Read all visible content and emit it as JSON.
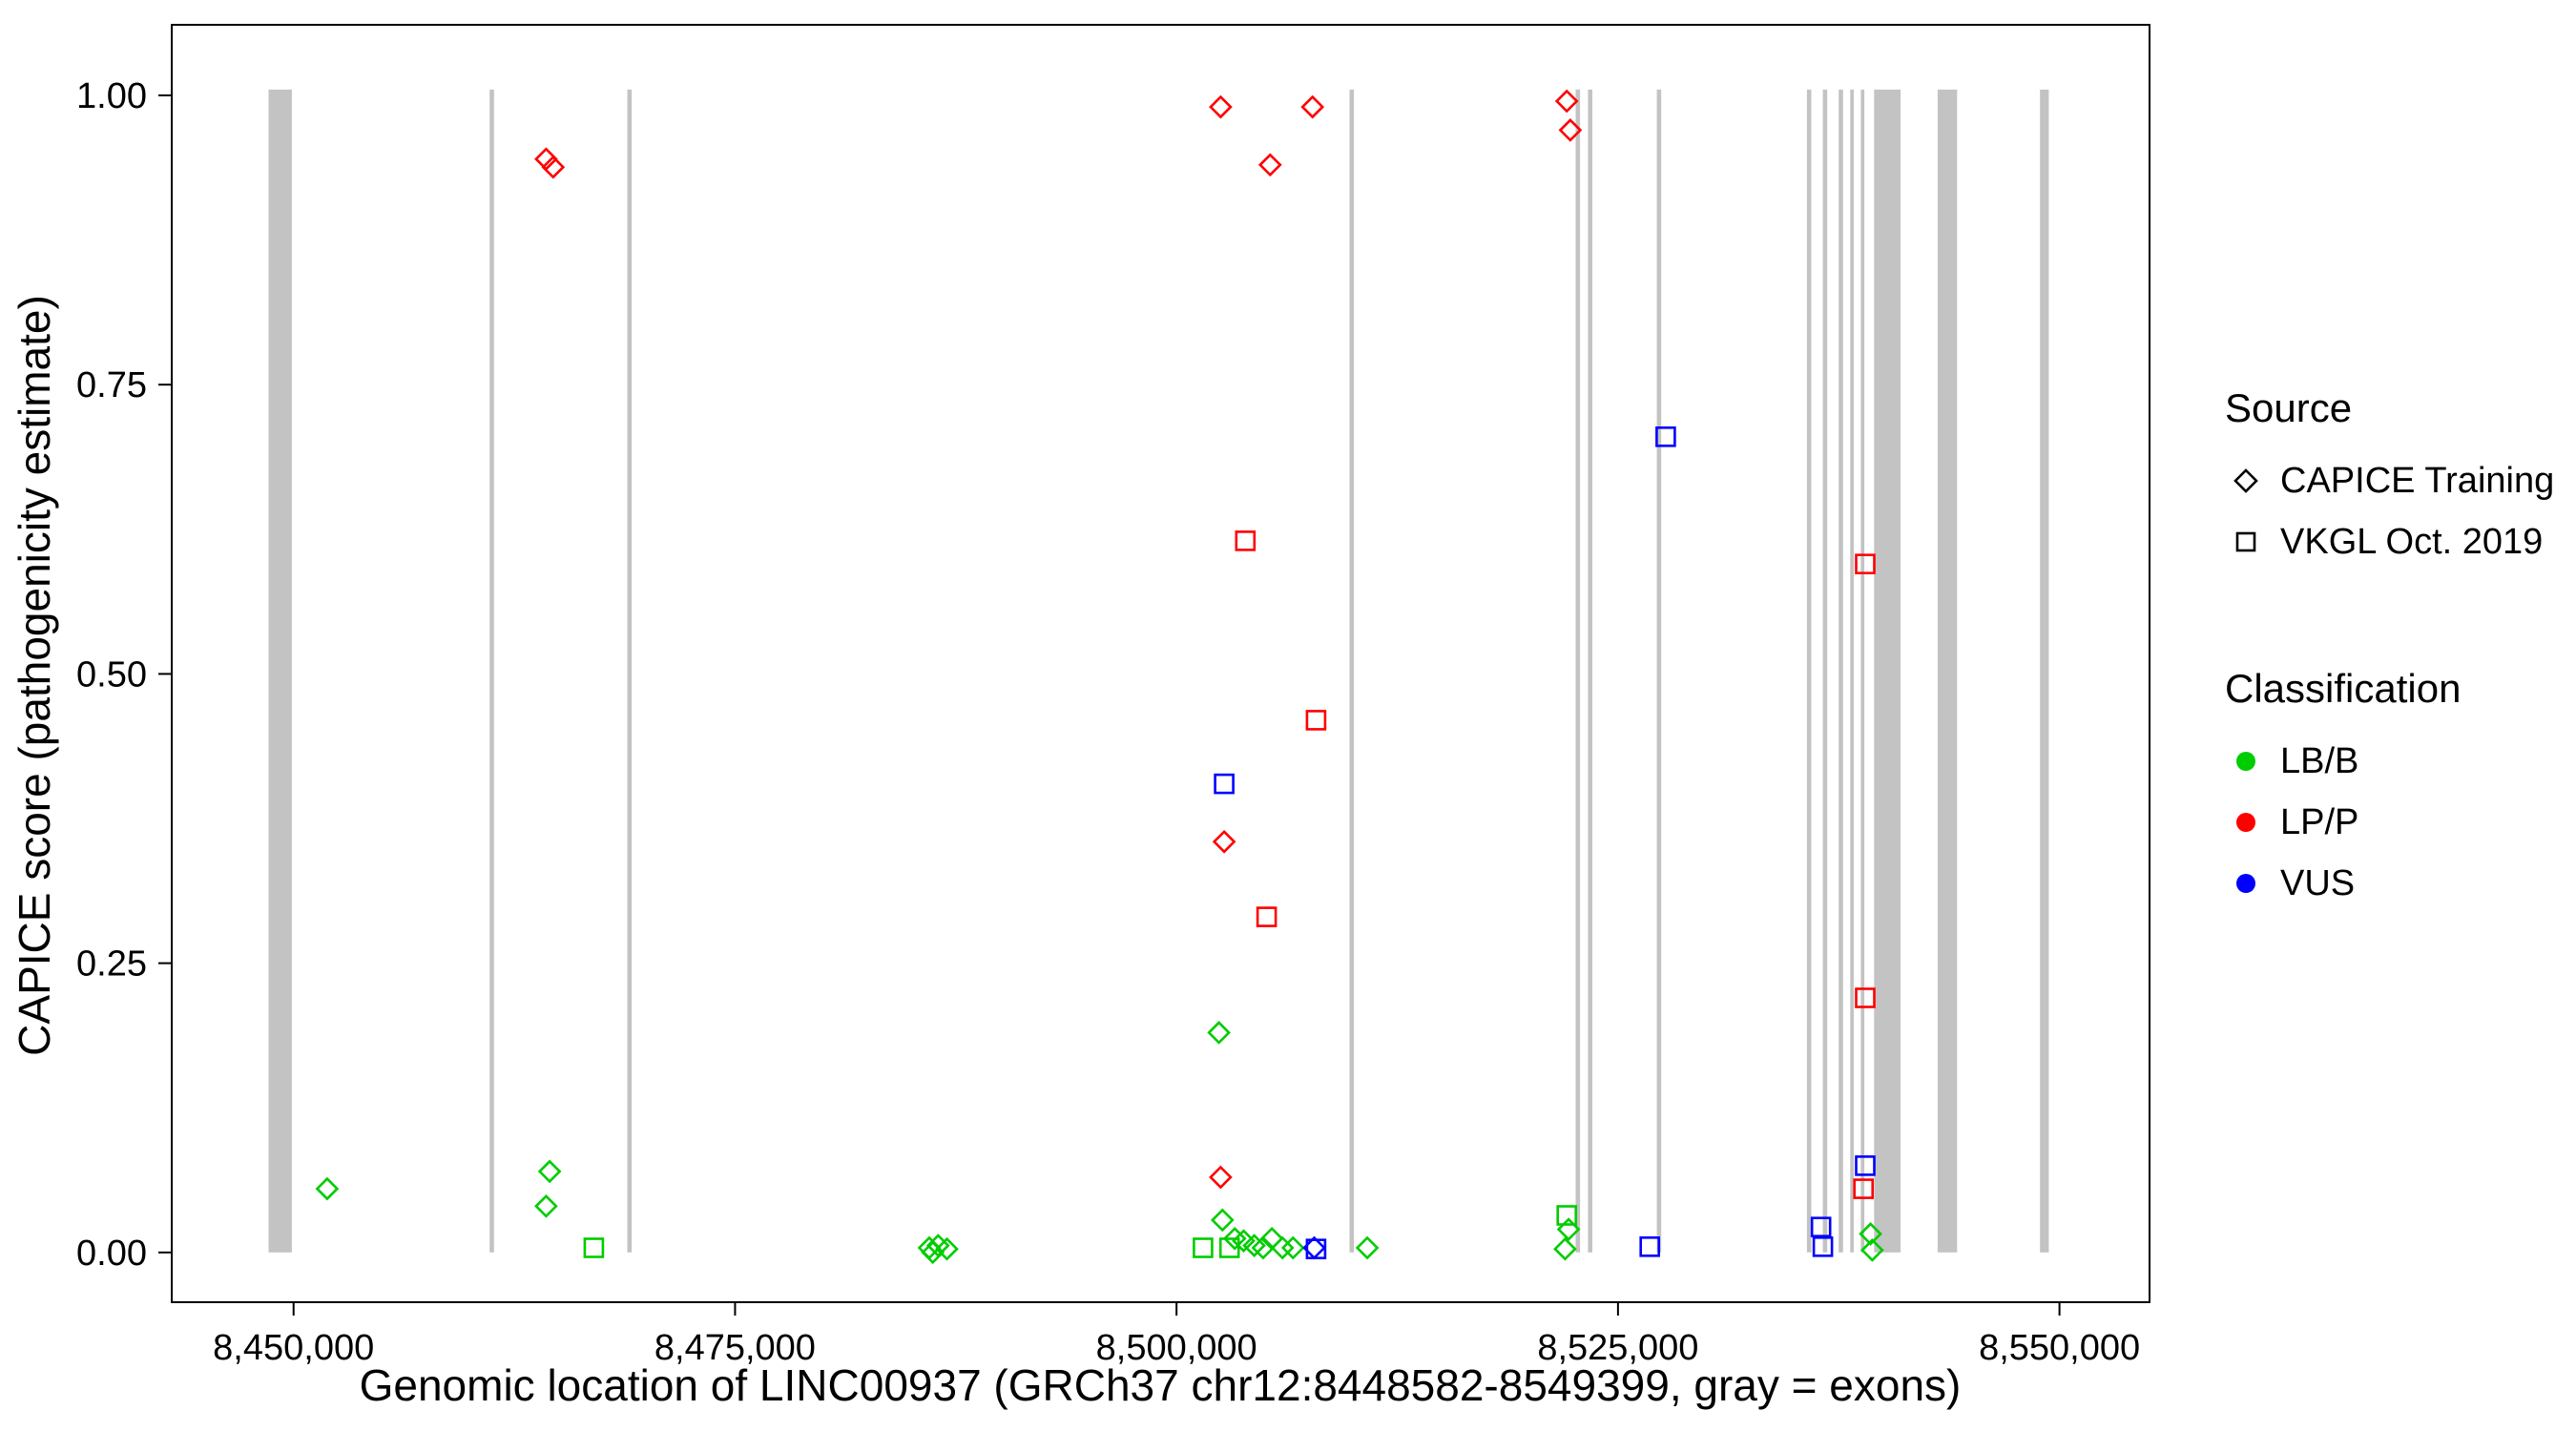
{
  "chart_data": {
    "type": "scatter",
    "title": "",
    "xlabel": "Genomic location of LINC00937 (GRCh37 chr12:8448582-8549399, gray = exons)",
    "ylabel": "CAPICE score (pathogenicity estimate)",
    "x_domain": [
      8443100,
      8555100
    ],
    "y_domain": [
      -0.043,
      1.061
    ],
    "x_ticks": [
      {
        "value": 8450000,
        "label": "8,450,000"
      },
      {
        "value": 8475000,
        "label": "8,475,000"
      },
      {
        "value": 8500000,
        "label": "8,500,000"
      },
      {
        "value": 8525000,
        "label": "8,525,000"
      },
      {
        "value": 8550000,
        "label": "8,550,000"
      }
    ],
    "y_ticks": [
      {
        "value": 0.0,
        "label": "0.00"
      },
      {
        "value": 0.25,
        "label": "0.25"
      },
      {
        "value": 0.5,
        "label": "0.50"
      },
      {
        "value": 0.75,
        "label": "0.75"
      },
      {
        "value": 1.0,
        "label": "1.00"
      }
    ],
    "colors": {
      "lbb": "#00CD00",
      "lpp": "#FF0000",
      "vus": "#0000FF",
      "exon": "#C3C3C3",
      "axis": "#000000"
    },
    "exon_band": {
      "ymin": 0.0,
      "ymax": 1.005
    },
    "exons": [
      {
        "start": 8448582,
        "end": 8449900
      },
      {
        "start": 8461100,
        "end": 8461350
      },
      {
        "start": 8468900,
        "end": 8469150
      },
      {
        "start": 8509800,
        "end": 8510050
      },
      {
        "start": 8522600,
        "end": 8522850
      },
      {
        "start": 8523300,
        "end": 8523550
      },
      {
        "start": 8527200,
        "end": 8527450
      },
      {
        "start": 8535700,
        "end": 8535950
      },
      {
        "start": 8536600,
        "end": 8536850
      },
      {
        "start": 8537500,
        "end": 8537750
      },
      {
        "start": 8538150,
        "end": 8538350
      },
      {
        "start": 8538750,
        "end": 8538950
      },
      {
        "start": 8539500,
        "end": 8541000
      },
      {
        "start": 8543100,
        "end": 8544200
      },
      {
        "start": 8548900,
        "end": 8549399
      }
    ],
    "series": [
      {
        "name": "CAPICE Training",
        "marker": "diamond",
        "groups": [
          {
            "classification": "LB/B",
            "color_key": "lbb",
            "points": [
              [
                8451900,
                0.055
              ],
              [
                8464300,
                0.04
              ],
              [
                8464500,
                0.07
              ],
              [
                8486000,
                0.004
              ],
              [
                8486200,
                0.0
              ],
              [
                8486500,
                0.006
              ],
              [
                8487000,
                0.003
              ],
              [
                8502400,
                0.19
              ],
              [
                8502600,
                0.028
              ],
              [
                8503300,
                0.012
              ],
              [
                8503800,
                0.01
              ],
              [
                8504400,
                0.006
              ],
              [
                8504900,
                0.004
              ],
              [
                8505400,
                0.012
              ],
              [
                8506000,
                0.004
              ],
              [
                8506600,
                0.004
              ],
              [
                8510800,
                0.004
              ],
              [
                8522000,
                0.003
              ],
              [
                8522200,
                0.02
              ],
              [
                8539300,
                0.016
              ],
              [
                8539400,
                0.002
              ]
            ]
          },
          {
            "classification": "LP/P",
            "color_key": "lpp",
            "points": [
              [
                8464300,
                0.945
              ],
              [
                8464700,
                0.938
              ],
              [
                8502500,
                0.99
              ],
              [
                8505300,
                0.94
              ],
              [
                8507700,
                0.99
              ],
              [
                8522100,
                0.995
              ],
              [
                8522300,
                0.97
              ],
              [
                8502700,
                0.355
              ],
              [
                8502500,
                0.065
              ]
            ]
          },
          {
            "classification": "VUS",
            "color_key": "vus",
            "points": [
              [
                8507800,
                0.004
              ]
            ]
          }
        ]
      },
      {
        "name": "VKGL Oct. 2019",
        "marker": "square",
        "groups": [
          {
            "classification": "LB/B",
            "color_key": "lbb",
            "points": [
              [
                8467000,
                0.004
              ],
              [
                8501500,
                0.004
              ],
              [
                8503000,
                0.004
              ],
              [
                8522100,
                0.032
              ]
            ]
          },
          {
            "classification": "LP/P",
            "color_key": "lpp",
            "points": [
              [
                8503900,
                0.615
              ],
              [
                8505100,
                0.29
              ],
              [
                8507900,
                0.46
              ],
              [
                8538900,
                0.055
              ],
              [
                8539000,
                0.22
              ],
              [
                8539000,
                0.595
              ]
            ]
          },
          {
            "classification": "VUS",
            "color_key": "vus",
            "points": [
              [
                8502700,
                0.405
              ],
              [
                8507900,
                0.003
              ],
              [
                8526800,
                0.005
              ],
              [
                8527700,
                0.705
              ],
              [
                8536500,
                0.022
              ],
              [
                8536600,
                0.005
              ],
              [
                8539000,
                0.075
              ]
            ]
          }
        ]
      }
    ]
  },
  "legend": {
    "source": {
      "title": "Source",
      "items": [
        {
          "label": "CAPICE Training",
          "marker": "diamond"
        },
        {
          "label": "VKGL Oct. 2019",
          "marker": "square"
        }
      ]
    },
    "classification": {
      "title": "Classification",
      "items": [
        {
          "label": "LB/B",
          "color_key": "lbb"
        },
        {
          "label": "LP/P",
          "color_key": "lpp"
        },
        {
          "label": "VUS",
          "color_key": "vus"
        }
      ]
    }
  }
}
